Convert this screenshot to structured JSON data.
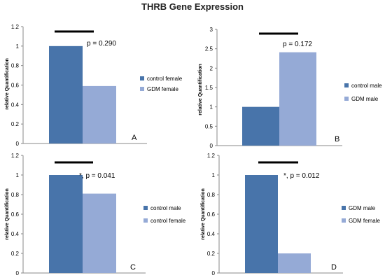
{
  "title": "THRB Gene Expression",
  "colors": {
    "dark": "#4874aa",
    "light": "#95aad6"
  },
  "chart_data": [
    {
      "type": "bar",
      "panel": "A",
      "series": [
        {
          "name": "control female",
          "values": [
            1.0
          ]
        },
        {
          "name": "GDM female",
          "values": [
            0.59
          ]
        }
      ],
      "ylabel": "relative Quantification",
      "ylim": [
        0,
        1.2
      ],
      "yticks": [
        "0",
        "0.2",
        "0.4",
        "0.6",
        "0.8",
        "1",
        "1.2"
      ],
      "annotation": "p = 0.290",
      "legend": "right"
    },
    {
      "type": "bar",
      "panel": "B",
      "series": [
        {
          "name": "control male",
          "values": [
            1.0
          ]
        },
        {
          "name": "GDM male",
          "values": [
            2.41
          ]
        }
      ],
      "ylabel": "relative Quantification",
      "ylim": [
        0,
        3
      ],
      "yticks": [
        "0",
        "0.5",
        "1",
        "1.5",
        "2",
        "2.5",
        "3"
      ],
      "annotation": "p = 0.172",
      "legend": "right"
    },
    {
      "type": "bar",
      "panel": "C",
      "series": [
        {
          "name": "control male",
          "values": [
            1.0
          ]
        },
        {
          "name": "control female",
          "values": [
            0.81
          ]
        }
      ],
      "ylabel": "relative Quantification",
      "ylim": [
        0,
        1.2
      ],
      "yticks": [
        "0",
        "0.2",
        "0.4",
        "0.6",
        "0.8",
        "1",
        "1.2"
      ],
      "annotation": "*, p = 0.041",
      "legend": "right"
    },
    {
      "type": "bar",
      "panel": "D",
      "series": [
        {
          "name": "GDM male",
          "values": [
            1.0
          ]
        },
        {
          "name": "GDM female",
          "values": [
            0.2
          ]
        }
      ],
      "ylabel": "relative Quantification",
      "ylim": [
        0,
        1.2
      ],
      "yticks": [
        "0",
        "0.2",
        "0.4",
        "0.6",
        "0.8",
        "1",
        "1.2"
      ],
      "annotation": "*, p = 0.012",
      "legend": "right"
    }
  ]
}
